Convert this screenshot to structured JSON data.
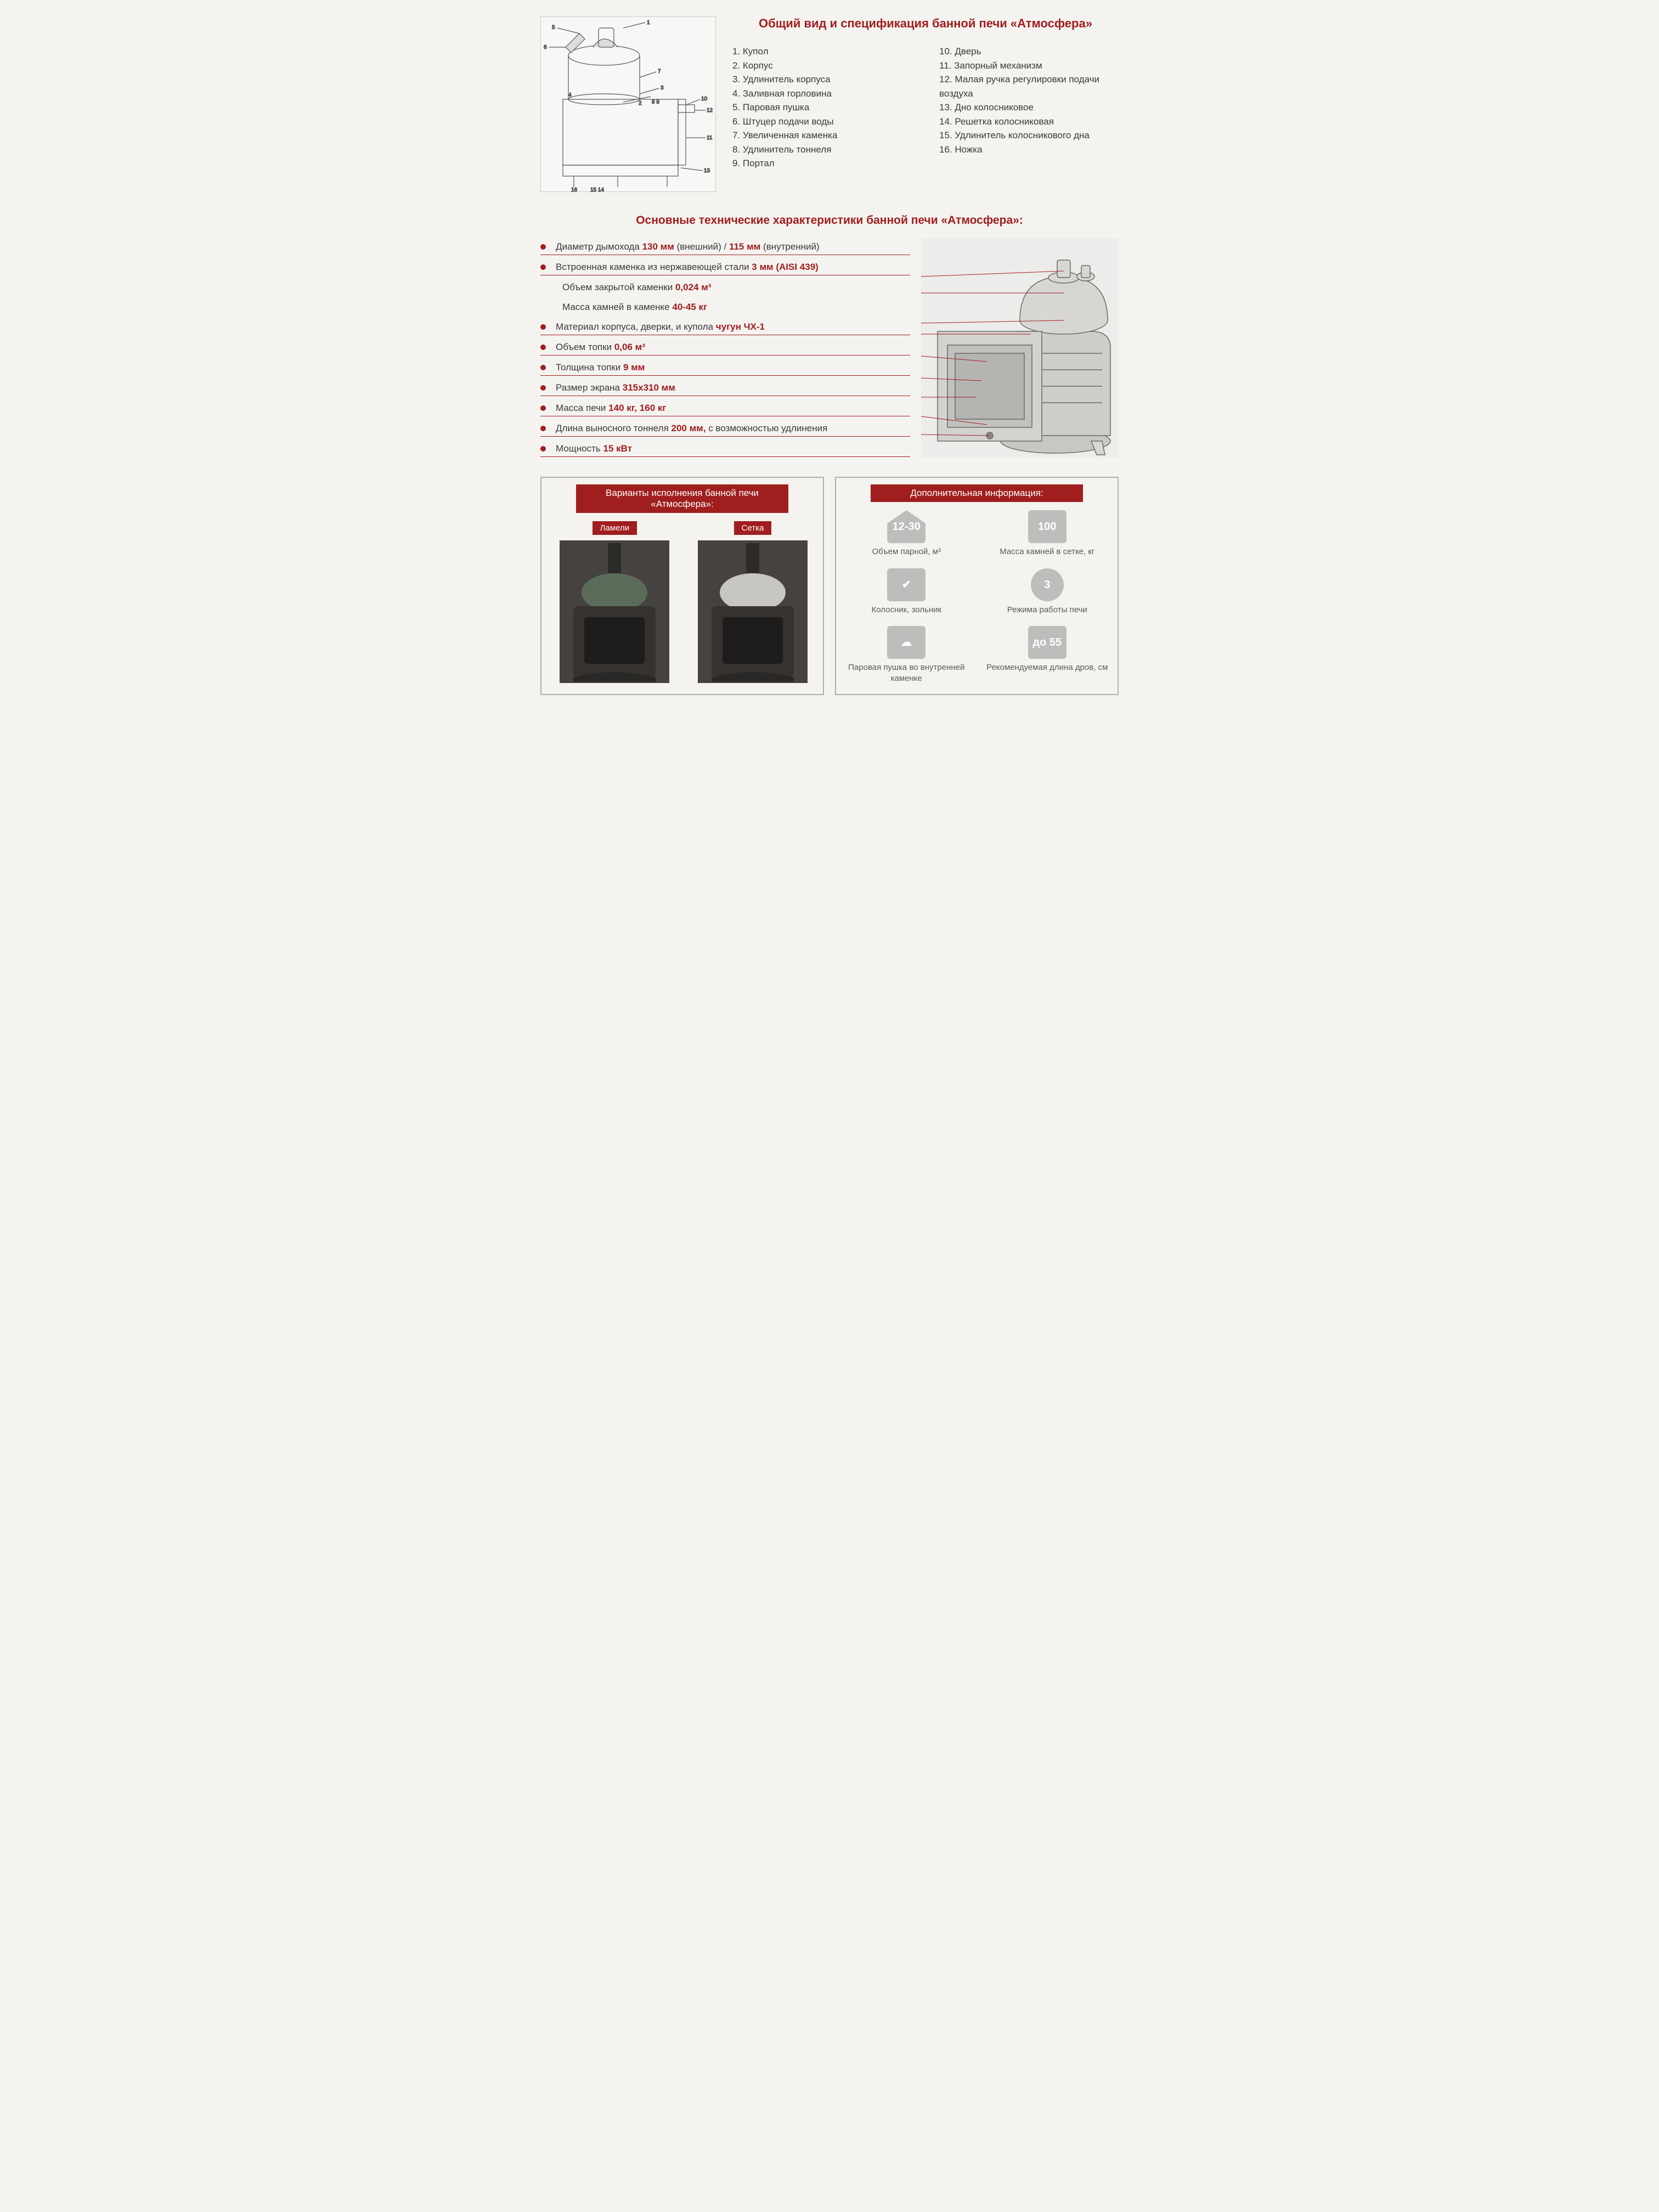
{
  "colors": {
    "accent": "#a01e1e",
    "text": "#3a3939",
    "bg": "#f5f3f0",
    "iconGray": "#bfbdbb"
  },
  "header": {
    "title": "Общий вид и спецификация банной печи «Атмосфера»"
  },
  "parts": {
    "col1": [
      "1. Купол",
      "2. Корпус",
      "3. Удлинитель корпуса",
      "4. Заливная горловина",
      "5. Паровая пушка",
      "6. Штуцер подачи воды",
      "7. Увеличенная каменка",
      "8. Удлинитель тоннеля",
      "9. Портал"
    ],
    "col2": [
      "10. Дверь",
      "11. Запорный механизм",
      "12. Малая ручка регулировки подачи воздуха",
      "13. Дно колосниковое",
      "14. Решетка колосниковая",
      "15. Удлинитель колосникового дна",
      "16. Ножка"
    ]
  },
  "tech": {
    "title": "Основные технические характеристики банной печи «Атмосфера»:",
    "lines": [
      {
        "pre": "Диаметр дымохода ",
        "val": "130 мм",
        "mid": " (внешний) / ",
        "val2": "115 мм",
        "post": " (внутренний)",
        "bullet": true
      },
      {
        "pre": "Встроенная каменка из нержавеющей стали ",
        "val": "3 мм (AISI 439)",
        "bullet": true
      },
      {
        "pre": "Объем закрытой каменки ",
        "val": "0,024 м³",
        "indent": true
      },
      {
        "pre": "Масса камней в каменке ",
        "val": "40-45 кг",
        "indent": true
      },
      {
        "pre": "Материал корпуса, дверки, и купола ",
        "val": "чугун ЧХ-1",
        "bullet": true
      },
      {
        "pre": "Объем топки ",
        "val": "0,06 м³",
        "bullet": true
      },
      {
        "pre": "Толщина топки ",
        "val": "9 мм",
        "bullet": true
      },
      {
        "pre": "Размер экрана ",
        "val": "315х310 мм",
        "bullet": true
      },
      {
        "pre": "Масса печи ",
        "val": "140 кг, 160 кг",
        "bullet": true
      },
      {
        "pre": "Длина выносного тоннеля ",
        "val": "200 мм,",
        "post": " с возможностью удлинения",
        "bullet": true
      },
      {
        "pre": "Мощность ",
        "val": "15 кВт",
        "bullet": true
      }
    ]
  },
  "variants": {
    "boxTitle": "Варианты исполнения банной печи «Атмосфера»:",
    "items": [
      {
        "label": "Ламели"
      },
      {
        "label": "Сетка"
      }
    ]
  },
  "info": {
    "boxTitle": "Дополнительная информация:",
    "cells": [
      {
        "iconText": "12-30",
        "iconClass": "house",
        "label": "Объем парной, м³"
      },
      {
        "iconText": "100",
        "iconClass": "",
        "label": "Масса камней в сетке, кг"
      },
      {
        "iconText": "✔",
        "iconClass": "",
        "label": "Колосник, зольник"
      },
      {
        "iconText": "3",
        "iconClass": "circle",
        "label": "Режима работы печи"
      },
      {
        "iconText": "☁",
        "iconClass": "",
        "label": "Паровая пушка во внутренней каменке"
      },
      {
        "iconText": "до 55",
        "iconClass": "",
        "label": "Рекомендуемая длина дров, см"
      }
    ]
  }
}
